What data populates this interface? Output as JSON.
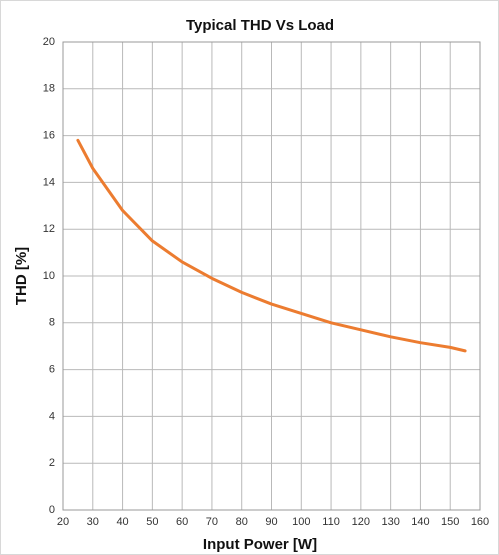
{
  "chart_data": {
    "type": "line",
    "title": "Typical THD Vs Load",
    "xlabel": "Input Power [W]",
    "ylabel": "THD [%]",
    "x": [
      25,
      30,
      40,
      50,
      60,
      70,
      80,
      90,
      100,
      110,
      120,
      130,
      140,
      150,
      155
    ],
    "series": [
      {
        "name": "THD",
        "color": "#ec7c30",
        "values": [
          15.8,
          14.6,
          12.8,
          11.5,
          10.6,
          9.9,
          9.3,
          8.8,
          8.4,
          8.0,
          7.7,
          7.4,
          7.15,
          6.95,
          6.8
        ]
      }
    ],
    "xlim": [
      20,
      160
    ],
    "xticks": [
      20,
      30,
      40,
      50,
      60,
      70,
      80,
      90,
      100,
      110,
      120,
      130,
      140,
      150,
      160
    ],
    "ylim": [
      0,
      20
    ],
    "yticks": [
      0,
      2,
      4,
      6,
      8,
      10,
      12,
      14,
      16,
      18,
      20
    ],
    "grid": true
  }
}
